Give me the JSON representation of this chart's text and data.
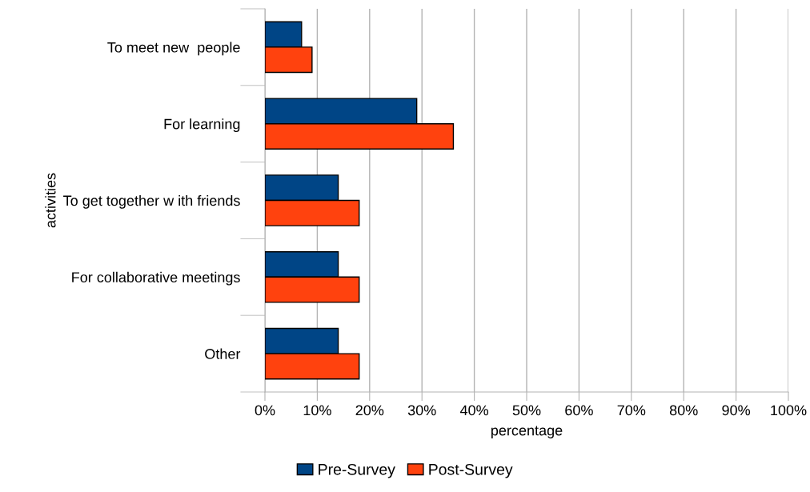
{
  "chart_data": {
    "type": "bar",
    "orientation": "horizontal",
    "categories": [
      "To meet new  people",
      "For learning",
      "To get together w ith friends",
      "For collaborative meetings",
      "Other"
    ],
    "series": [
      {
        "name": "Pre-Survey",
        "color": "#004586",
        "values": [
          7,
          29,
          14,
          14,
          14
        ]
      },
      {
        "name": "Post-Survey",
        "color": "#ff420e",
        "values": [
          9,
          36,
          18,
          18,
          18
        ]
      }
    ],
    "xlabel": "percentage",
    "ylabel": "activities",
    "xlim": [
      0,
      100
    ],
    "xticks": [
      {
        "value": 0,
        "label": "0%"
      },
      {
        "value": 10,
        "label": "10%"
      },
      {
        "value": 20,
        "label": "20%"
      },
      {
        "value": 30,
        "label": "30%"
      },
      {
        "value": 40,
        "label": "40%"
      },
      {
        "value": 50,
        "label": "50%"
      },
      {
        "value": 60,
        "label": "60%"
      },
      {
        "value": 70,
        "label": "70%"
      },
      {
        "value": 80,
        "label": "80%"
      },
      {
        "value": 90,
        "label": "90%"
      },
      {
        "value": 100,
        "label": "100%"
      }
    ],
    "grid": "x",
    "legend": "bottom"
  }
}
